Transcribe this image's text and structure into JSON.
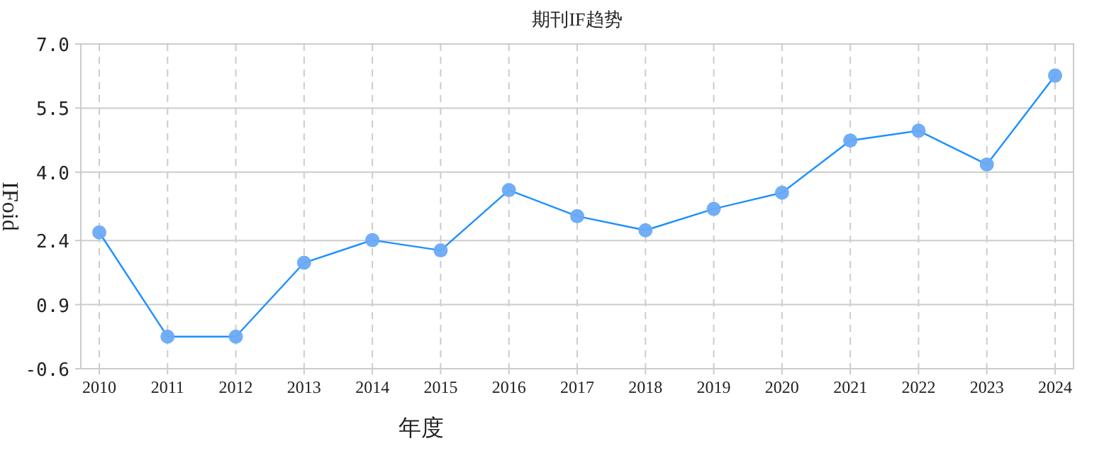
{
  "chart_data": {
    "type": "line",
    "title": "期刊IF趋势",
    "xlabel": "年度",
    "ylabel": "IFoid",
    "categories": [
      "2010",
      "2011",
      "2012",
      "2013",
      "2014",
      "2015",
      "2016",
      "2017",
      "2018",
      "2019",
      "2020",
      "2021",
      "2022",
      "2023",
      "2024"
    ],
    "series": [
      {
        "color": "#1e90ff",
        "values": [
          2.59,
          0.15,
          0.15,
          1.88,
          2.41,
          2.17,
          3.58,
          2.97,
          2.64,
          3.14,
          3.52,
          4.74,
          4.97,
          4.18,
          6.26
        ]
      }
    ],
    "ylim": [
      -0.6,
      7.0
    ],
    "yticks": [
      {
        "value": -0.6,
        "label": "-0.6"
      },
      {
        "value": 0.9,
        "label": "0.9"
      },
      {
        "value": 2.4,
        "label": "2.4"
      },
      {
        "value": 4.0,
        "label": "4.0"
      },
      {
        "value": 5.5,
        "label": "5.5"
      },
      {
        "value": 7.0,
        "label": "7.0"
      }
    ],
    "grid": true,
    "marker": "circle",
    "line_style": "solid"
  }
}
